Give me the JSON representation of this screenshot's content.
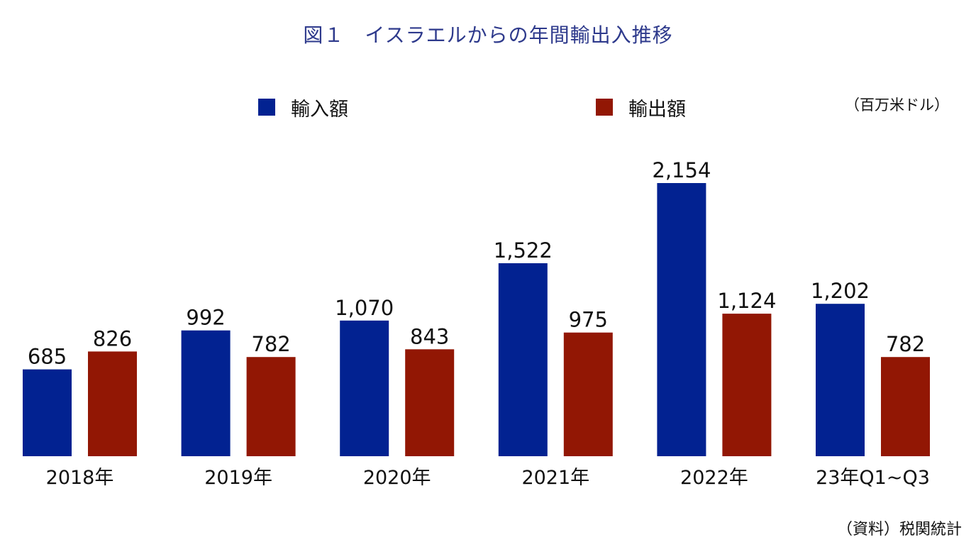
{
  "title": "図１　イスラエルからの年間輸出入推移",
  "unit_label": "（百万米ドル）",
  "source_label": "（資料）税関統計",
  "chart_data": {
    "type": "bar",
    "title": "図１　イスラエルからの年間輸出入推移",
    "xlabel": "",
    "ylabel": "",
    "ylim": [
      0,
      2154
    ],
    "grid": false,
    "legend_position": "top",
    "categories": [
      "2018年",
      "2019年",
      "2020年",
      "2021年",
      "2022年",
      "23年Q1~Q3"
    ],
    "series": [
      {
        "name": "輸入額",
        "color": "#022291",
        "values": [
          685,
          992,
          1070,
          1522,
          2154,
          1202
        ],
        "labels": [
          "685",
          "992",
          "1,070",
          "1,522",
          "2,154",
          "1,202"
        ]
      },
      {
        "name": "輸出額",
        "color": "#921704",
        "values": [
          826,
          782,
          843,
          975,
          1124,
          782
        ],
        "labels": [
          "826",
          "782",
          "843",
          "975",
          "1,124",
          "782"
        ]
      }
    ]
  }
}
